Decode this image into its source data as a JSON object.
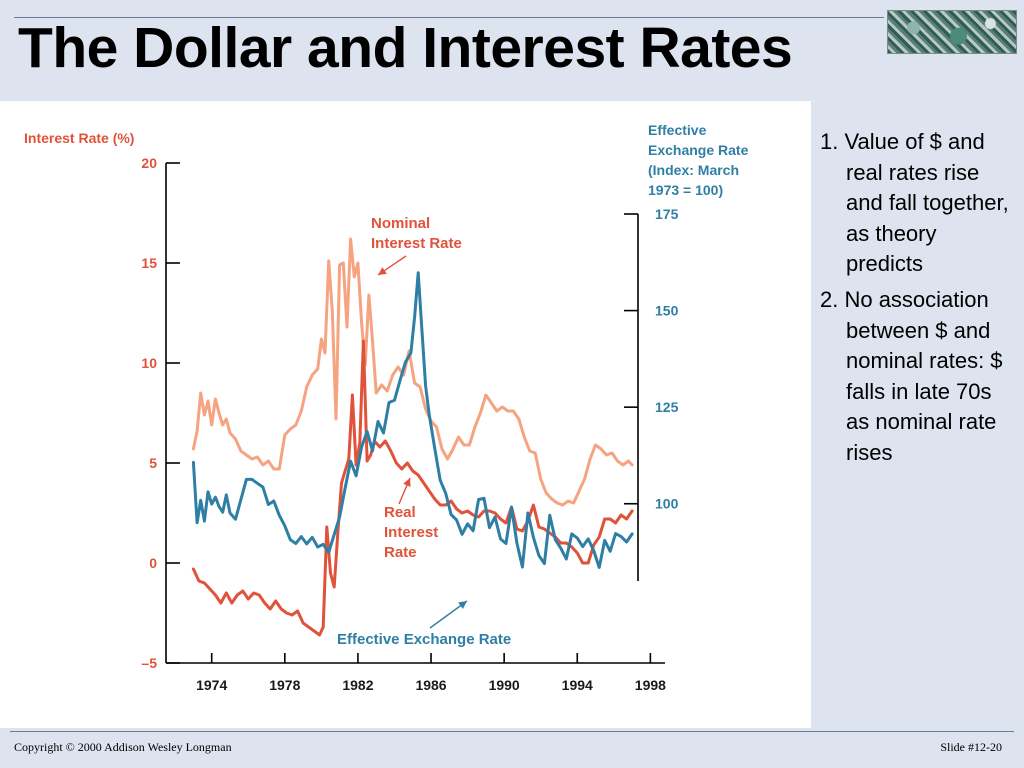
{
  "slide": {
    "title": "The Dollar and Interest Rates",
    "points": [
      "1. Value of $ and real rates rise and fall together, as theory predicts",
      "2. No association between $ and nominal rates: $ falls in late 70s as nominal rate rises"
    ],
    "footer": {
      "copyright": "Copyright © 2000 Addison Wesley Longman",
      "slide_number": "Slide #12-20"
    }
  },
  "chart_data": {
    "type": "line",
    "title": "",
    "left_axis": {
      "label": "Interest Rate (%)",
      "ticks": [
        20,
        15,
        10,
        5,
        0,
        -5
      ],
      "tick_labels": [
        "20",
        "15",
        "10",
        "5",
        "0",
        "–5"
      ],
      "range": [
        -5,
        20
      ]
    },
    "right_axis": {
      "label_lines": [
        "Effective",
        "Exchange Rate",
        "(Index: March",
        "1973 = 100)"
      ],
      "ticks": [
        175,
        150,
        125,
        100
      ],
      "tick_labels": [
        "175",
        "150",
        "125",
        "100"
      ],
      "range": [
        80,
        175
      ]
    },
    "x_axis": {
      "ticks": [
        1974,
        1978,
        1982,
        1986,
        1990,
        1994,
        1998
      ],
      "tick_labels": [
        "1974",
        "1978",
        "1982",
        "1986",
        "1990",
        "1994",
        "1998"
      ],
      "range": [
        1971.5,
        1998.8
      ]
    },
    "annotations": [
      {
        "lines": [
          "Nominal",
          "Interest Rate"
        ],
        "color": "#e0533a"
      },
      {
        "lines": [
          "Real",
          "Interest",
          "Rate"
        ],
        "color": "#e0533a"
      },
      {
        "lines": [
          "Effective Exchange Rate"
        ],
        "color": "#2f7fa5"
      }
    ],
    "series": [
      {
        "name": "Nominal Interest Rate",
        "axis": "left",
        "color": "#f5a381",
        "x": [
          1973.0,
          1973.2,
          1973.4,
          1973.6,
          1973.8,
          1974.0,
          1974.2,
          1974.4,
          1974.6,
          1974.8,
          1975.0,
          1975.3,
          1975.6,
          1975.9,
          1976.2,
          1976.5,
          1976.8,
          1977.1,
          1977.4,
          1977.7,
          1978.0,
          1978.3,
          1978.6,
          1978.9,
          1979.2,
          1979.5,
          1979.8,
          1980.0,
          1980.2,
          1980.4,
          1980.6,
          1980.8,
          1981.0,
          1981.2,
          1981.4,
          1981.6,
          1981.8,
          1982.0,
          1982.2,
          1982.4,
          1982.6,
          1982.8,
          1983.0,
          1983.3,
          1983.6,
          1983.9,
          1984.2,
          1984.5,
          1984.8,
          1985.1,
          1985.4,
          1985.7,
          1986.0,
          1986.3,
          1986.6,
          1986.9,
          1987.2,
          1987.5,
          1987.8,
          1988.1,
          1988.4,
          1988.7,
          1989.0,
          1989.3,
          1989.6,
          1989.9,
          1990.2,
          1990.5,
          1990.8,
          1991.1,
          1991.4,
          1991.7,
          1992.0,
          1992.3,
          1992.6,
          1992.9,
          1993.2,
          1993.5,
          1993.8,
          1994.1,
          1994.4,
          1994.7,
          1995.0,
          1995.3,
          1995.6,
          1995.9,
          1996.2,
          1996.5,
          1996.8,
          1997.0
        ],
        "values": [
          5.7,
          6.6,
          8.5,
          7.4,
          8.1,
          6.9,
          8.2,
          7.5,
          6.9,
          7.2,
          6.5,
          6.2,
          5.6,
          5.4,
          5.2,
          5.3,
          4.9,
          5.1,
          4.7,
          4.7,
          6.4,
          6.7,
          6.9,
          7.6,
          8.8,
          9.4,
          9.7,
          11.2,
          10.5,
          15.1,
          12.6,
          7.2,
          14.9,
          15.0,
          11.8,
          16.2,
          14.3,
          15.0,
          12.0,
          9.9,
          13.4,
          11.1,
          8.5,
          8.9,
          8.6,
          9.4,
          9.8,
          9.4,
          10.6,
          9.0,
          8.8,
          7.7,
          7.1,
          6.8,
          5.7,
          5.2,
          5.7,
          6.3,
          5.9,
          5.9,
          6.8,
          7.5,
          8.4,
          8.0,
          7.6,
          7.8,
          7.6,
          7.6,
          7.2,
          6.3,
          5.6,
          5.5,
          4.2,
          3.5,
          3.2,
          3.0,
          2.9,
          3.1,
          3.0,
          3.6,
          4.2,
          5.2,
          5.9,
          5.7,
          5.4,
          5.5,
          5.1,
          4.9,
          5.1,
          4.9
        ]
      },
      {
        "name": "Real Interest Rate",
        "axis": "left",
        "color": "#e0533a",
        "x": [
          1973.0,
          1973.3,
          1973.6,
          1973.9,
          1974.2,
          1974.5,
          1974.8,
          1975.1,
          1975.4,
          1975.7,
          1976.0,
          1976.3,
          1976.6,
          1976.9,
          1977.2,
          1977.5,
          1977.8,
          1978.1,
          1978.4,
          1978.7,
          1979.0,
          1979.3,
          1979.6,
          1979.9,
          1980.1,
          1980.3,
          1980.5,
          1980.7,
          1980.9,
          1981.1,
          1981.3,
          1981.5,
          1981.7,
          1981.9,
          1982.1,
          1982.3,
          1982.5,
          1982.7,
          1982.9,
          1983.2,
          1983.5,
          1983.8,
          1984.1,
          1984.4,
          1984.7,
          1985.0,
          1985.3,
          1985.6,
          1985.9,
          1986.2,
          1986.5,
          1986.8,
          1987.1,
          1987.4,
          1987.7,
          1988.0,
          1988.3,
          1988.6,
          1988.9,
          1989.2,
          1989.5,
          1989.8,
          1990.1,
          1990.4,
          1990.7,
          1991.0,
          1991.3,
          1991.6,
          1991.9,
          1992.2,
          1992.5,
          1992.8,
          1993.1,
          1993.4,
          1993.7,
          1994.0,
          1994.3,
          1994.6,
          1994.9,
          1995.2,
          1995.5,
          1995.8,
          1996.1,
          1996.4,
          1996.7,
          1997.0
        ],
        "values": [
          -0.3,
          -0.9,
          -1.0,
          -1.3,
          -1.6,
          -2.0,
          -1.5,
          -2.0,
          -1.6,
          -1.4,
          -1.8,
          -1.5,
          -1.6,
          -2.0,
          -2.3,
          -1.9,
          -2.3,
          -2.5,
          -2.6,
          -2.4,
          -3.0,
          -3.2,
          -3.4,
          -3.6,
          -3.2,
          1.8,
          -0.5,
          -1.2,
          1.5,
          4.0,
          4.6,
          5.2,
          8.4,
          4.9,
          6.0,
          11.1,
          5.1,
          5.4,
          6.1,
          5.8,
          6.1,
          5.6,
          5.0,
          4.7,
          5.0,
          4.6,
          4.4,
          4.0,
          3.6,
          3.2,
          2.9,
          2.9,
          3.1,
          2.7,
          2.5,
          2.6,
          2.4,
          2.3,
          2.6,
          2.6,
          2.5,
          2.2,
          2.0,
          2.8,
          1.7,
          1.6,
          2.1,
          2.9,
          1.8,
          1.7,
          1.5,
          1.3,
          1.0,
          1.0,
          0.8,
          0.5,
          0.0,
          0.0,
          0.9,
          1.3,
          2.2,
          2.2,
          2.0,
          2.4,
          2.2,
          2.6
        ]
      },
      {
        "name": "Effective Exchange Rate",
        "axis": "right",
        "color": "#2f7fa5",
        "x": [
          1973.0,
          1973.2,
          1973.4,
          1973.6,
          1973.8,
          1974.0,
          1974.2,
          1974.4,
          1974.6,
          1974.8,
          1975.0,
          1975.3,
          1975.6,
          1975.9,
          1976.2,
          1976.5,
          1976.8,
          1977.1,
          1977.4,
          1977.7,
          1978.0,
          1978.3,
          1978.6,
          1978.9,
          1979.2,
          1979.5,
          1979.8,
          1980.1,
          1980.4,
          1980.7,
          1981.0,
          1981.3,
          1981.6,
          1981.9,
          1982.2,
          1982.5,
          1982.8,
          1983.1,
          1983.4,
          1983.7,
          1984.0,
          1984.3,
          1984.6,
          1984.9,
          1985.1,
          1985.3,
          1985.5,
          1985.7,
          1985.9,
          1986.2,
          1986.5,
          1986.8,
          1987.1,
          1987.4,
          1987.7,
          1988.0,
          1988.3,
          1988.6,
          1988.9,
          1989.2,
          1989.5,
          1989.8,
          1990.1,
          1990.4,
          1990.7,
          1991.0,
          1991.3,
          1991.6,
          1991.9,
          1992.2,
          1992.5,
          1992.8,
          1993.1,
          1993.4,
          1993.7,
          1994.0,
          1994.3,
          1994.6,
          1994.9,
          1995.2,
          1995.5,
          1995.8,
          1996.1,
          1996.4,
          1996.7,
          1997.0
        ],
        "values": [
          110.7,
          95.1,
          100.9,
          95.5,
          103.1,
          99.9,
          101.7,
          99.3,
          97.8,
          102.3,
          97.6,
          96.0,
          101.1,
          106.3,
          106.3,
          105.3,
          104.3,
          99.8,
          100.7,
          97.0,
          94.3,
          90.7,
          89.7,
          91.5,
          89.6,
          91.3,
          88.8,
          89.5,
          87.4,
          92.0,
          96.6,
          104.0,
          111.0,
          107.2,
          114.7,
          118.7,
          113.7,
          121.3,
          118.3,
          126.2,
          126.8,
          131.9,
          136.6,
          139.1,
          148.3,
          159.8,
          145.0,
          130.5,
          123.1,
          114.4,
          106.1,
          102.7,
          97.2,
          95.8,
          92.1,
          94.8,
          93.0,
          101.1,
          101.4,
          93.8,
          96.6,
          90.9,
          89.7,
          99.1,
          89.8,
          83.6,
          97.6,
          91.3,
          86.6,
          84.5,
          97.0,
          90.7,
          88.5,
          85.7,
          92.2,
          91.1,
          88.9,
          90.9,
          87.9,
          83.5,
          90.5,
          87.7,
          92.3,
          91.5,
          90.1,
          92.2
        ]
      }
    ]
  }
}
